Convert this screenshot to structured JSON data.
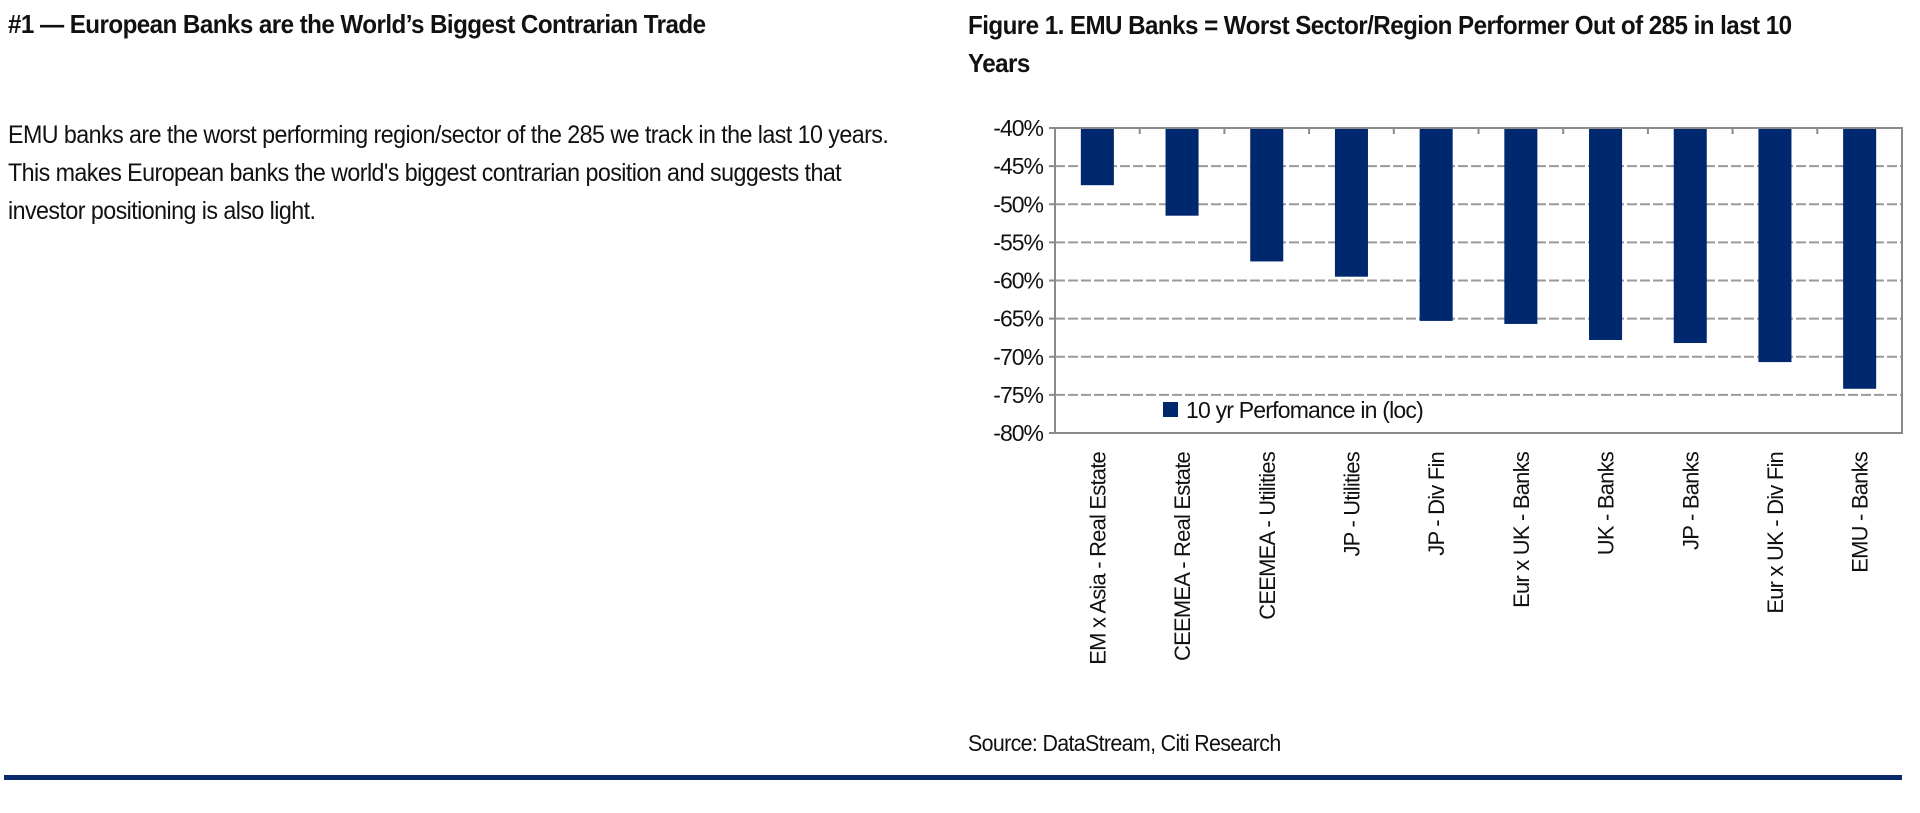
{
  "left": {
    "heading": "#1 — European Banks are the World’s Biggest Contrarian Trade",
    "paragraph": "EMU banks are the worst performing region/sector of the 285 we track in the last 10 years. This makes European banks the world's biggest contrarian position and suggests that investor positioning is also light."
  },
  "figure": {
    "title": "Figure 1. EMU Banks = Worst Sector/Region Performer Out of 285 in last 10 Years",
    "source": "Source: DataStream, Citi Research"
  },
  "colors": {
    "bar": "#00286e",
    "grid": "#9a9a9a",
    "rule": "#0b2a6e"
  },
  "chart_data": {
    "type": "bar",
    "title": "Figure 1. EMU Banks = Worst Sector/Region Performer Out of 285 in last 10 Years",
    "xlabel": "",
    "ylabel": "",
    "categories": [
      "EM x Asia - Real Estate",
      "CEEMEA - Real Estate",
      "CEEMEA - Utilities",
      "JP - Utilities",
      "JP - Div Fin",
      "Eur x UK - Banks",
      "UK - Banks",
      "JP - Banks",
      "Eur x UK - Div Fin",
      "EMU - Banks"
    ],
    "series": [
      {
        "name": "10 yr Perfomance in (loc)",
        "values": [
          -47.5,
          -51.5,
          -57.5,
          -59.5,
          -65.3,
          -65.7,
          -67.8,
          -68.2,
          -70.7,
          -74.2
        ]
      }
    ],
    "ylim": [
      -80,
      -40
    ],
    "yticks": [
      -40,
      -45,
      -50,
      -55,
      -60,
      -65,
      -70,
      -75,
      -80
    ],
    "ytick_labels": [
      "-40%",
      "-45%",
      "-50%",
      "-55%",
      "-60%",
      "-65%",
      "-70%",
      "-75%",
      "-80%"
    ],
    "grid": true,
    "legend": "bottom-center-inside",
    "bars_hang_from": -40
  }
}
